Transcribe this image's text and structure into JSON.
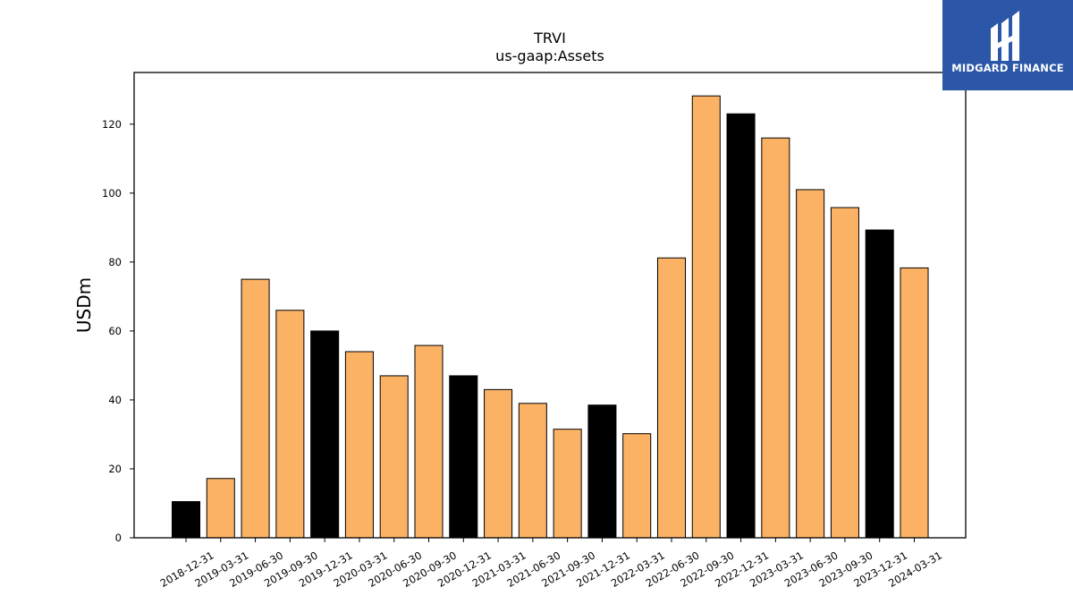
{
  "chart_data": {
    "type": "bar",
    "title": "TRVI",
    "subtitle": "us-gaap:Assets",
    "xlabel": "",
    "ylabel": "USDm",
    "ylim": [
      0,
      135
    ],
    "yticks": [
      0,
      20,
      40,
      60,
      80,
      100,
      120
    ],
    "grid": false,
    "categories": [
      "2018-12-31",
      "2019-03-31",
      "2019-06-30",
      "2019-09-30",
      "2019-12-31",
      "2020-03-31",
      "2020-06-30",
      "2020-09-30",
      "2020-12-31",
      "2021-03-31",
      "2021-06-30",
      "2021-09-30",
      "2021-12-31",
      "2022-03-31",
      "2022-06-30",
      "2022-09-30",
      "2022-12-31",
      "2023-03-31",
      "2023-06-30",
      "2023-09-30",
      "2023-12-31",
      "2024-03-31"
    ],
    "values": [
      10.5,
      17.2,
      75.0,
      66.0,
      60.0,
      54.0,
      47.0,
      55.8,
      47.0,
      43.0,
      39.0,
      31.5,
      38.5,
      30.2,
      81.2,
      128.2,
      123.0,
      116.0,
      101.0,
      95.8,
      89.3,
      78.3
    ],
    "bar_colors": [
      "#000000",
      "#fbb264",
      "#fbb264",
      "#fbb264",
      "#000000",
      "#fbb264",
      "#fbb264",
      "#fbb264",
      "#000000",
      "#fbb264",
      "#fbb264",
      "#fbb264",
      "#000000",
      "#fbb264",
      "#fbb264",
      "#fbb264",
      "#000000",
      "#fbb264",
      "#fbb264",
      "#fbb264",
      "#000000",
      "#fbb264"
    ]
  },
  "logo": {
    "text": "MIDGARD FINANCE",
    "background": "#2c57a8"
  }
}
